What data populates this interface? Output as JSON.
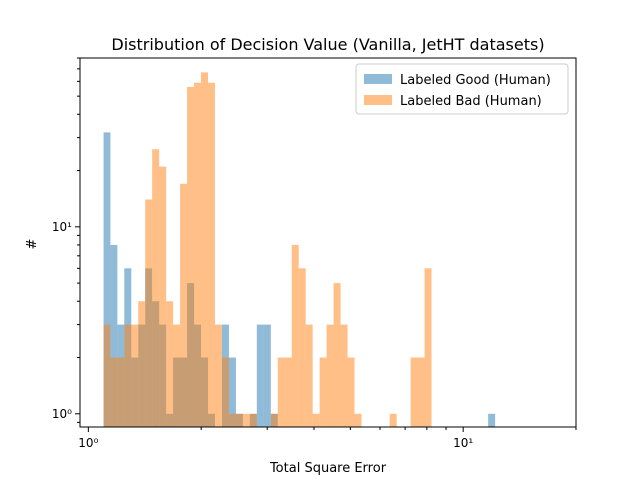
{
  "chart_data": {
    "type": "histogram",
    "title": "Distribution of Decision Value (Vanilla, JetHT datasets)",
    "xlabel": "Total Square Error",
    "ylabel": "#",
    "xscale": "log",
    "yscale": "log",
    "xlim": [
      0.95,
      20
    ],
    "ylim": [
      0.85,
      80
    ],
    "x_ticks": [
      {
        "value": 1,
        "label": "10⁰"
      },
      {
        "value": 10,
        "label": "10¹"
      }
    ],
    "y_ticks": [
      {
        "value": 1,
        "label": "10⁰"
      },
      {
        "value": 10,
        "label": "10¹"
      }
    ],
    "legend": {
      "position": "top-right"
    },
    "series": [
      {
        "name": "Labeled Good (Human)",
        "color": "#1f77b4",
        "opacity": 0.5,
        "bins": [
          {
            "x0": 1.098,
            "x1": 1.145,
            "count": 32
          },
          {
            "x0": 1.145,
            "x1": 1.195,
            "count": 8
          },
          {
            "x0": 1.195,
            "x1": 1.247,
            "count": 3
          },
          {
            "x0": 1.247,
            "x1": 1.302,
            "count": 6
          },
          {
            "x0": 1.302,
            "x1": 1.359,
            "count": 2
          },
          {
            "x0": 1.359,
            "x1": 1.418,
            "count": 3
          },
          {
            "x0": 1.418,
            "x1": 1.48,
            "count": 6
          },
          {
            "x0": 1.48,
            "x1": 1.545,
            "count": 4
          },
          {
            "x0": 1.545,
            "x1": 1.613,
            "count": 3
          },
          {
            "x0": 1.613,
            "x1": 1.683,
            "count": 1
          },
          {
            "x0": 1.683,
            "x1": 1.757,
            "count": 2
          },
          {
            "x0": 1.757,
            "x1": 1.834,
            "count": 2
          },
          {
            "x0": 1.834,
            "x1": 1.915,
            "count": 5
          },
          {
            "x0": 1.915,
            "x1": 1.998,
            "count": 3
          },
          {
            "x0": 1.998,
            "x1": 2.086,
            "count": 2
          },
          {
            "x0": 2.086,
            "x1": 2.177,
            "count": 1
          },
          {
            "x0": 2.272,
            "x1": 2.372,
            "count": 3
          },
          {
            "x0": 2.372,
            "x1": 2.476,
            "count": 2
          },
          {
            "x0": 2.476,
            "x1": 2.584,
            "count": 1
          },
          {
            "x0": 2.697,
            "x1": 2.815,
            "count": 1
          },
          {
            "x0": 2.815,
            "x1": 2.939,
            "count": 3
          },
          {
            "x0": 2.939,
            "x1": 3.068,
            "count": 3
          },
          {
            "x0": 3.068,
            "x1": 3.202,
            "count": 1
          },
          {
            "x0": 11.658,
            "x1": 12.168,
            "count": 1
          }
        ]
      },
      {
        "name": "Labeled Bad (Human)",
        "color": "#ff7f0e",
        "opacity": 0.5,
        "bins": [
          {
            "x0": 1.098,
            "x1": 1.145,
            "count": 3
          },
          {
            "x0": 1.145,
            "x1": 1.195,
            "count": 2
          },
          {
            "x0": 1.195,
            "x1": 1.247,
            "count": 2
          },
          {
            "x0": 1.247,
            "x1": 1.302,
            "count": 3
          },
          {
            "x0": 1.302,
            "x1": 1.359,
            "count": 3
          },
          {
            "x0": 1.359,
            "x1": 1.418,
            "count": 4
          },
          {
            "x0": 1.418,
            "x1": 1.48,
            "count": 14
          },
          {
            "x0": 1.48,
            "x1": 1.545,
            "count": 26
          },
          {
            "x0": 1.545,
            "x1": 1.613,
            "count": 21
          },
          {
            "x0": 1.613,
            "x1": 1.683,
            "count": 4
          },
          {
            "x0": 1.683,
            "x1": 1.757,
            "count": 3
          },
          {
            "x0": 1.757,
            "x1": 1.834,
            "count": 17
          },
          {
            "x0": 1.834,
            "x1": 1.915,
            "count": 56
          },
          {
            "x0": 1.915,
            "x1": 1.998,
            "count": 59
          },
          {
            "x0": 1.998,
            "x1": 2.086,
            "count": 67
          },
          {
            "x0": 2.086,
            "x1": 2.177,
            "count": 59
          },
          {
            "x0": 2.177,
            "x1": 2.272,
            "count": 3
          },
          {
            "x0": 2.272,
            "x1": 2.372,
            "count": 2
          },
          {
            "x0": 2.372,
            "x1": 2.476,
            "count": 1
          },
          {
            "x0": 2.476,
            "x1": 2.584,
            "count": 1
          },
          {
            "x0": 2.584,
            "x1": 2.697,
            "count": 1
          },
          {
            "x0": 2.697,
            "x1": 2.815,
            "count": 1
          },
          {
            "x0": 3.068,
            "x1": 3.202,
            "count": 1
          },
          {
            "x0": 3.202,
            "x1": 3.342,
            "count": 2
          },
          {
            "x0": 3.342,
            "x1": 3.489,
            "count": 2
          },
          {
            "x0": 3.489,
            "x1": 3.641,
            "count": 8
          },
          {
            "x0": 3.641,
            "x1": 3.801,
            "count": 6
          },
          {
            "x0": 3.801,
            "x1": 3.967,
            "count": 3
          },
          {
            "x0": 3.967,
            "x1": 4.141,
            "count": 1
          },
          {
            "x0": 4.141,
            "x1": 4.322,
            "count": 2
          },
          {
            "x0": 4.322,
            "x1": 4.511,
            "count": 3
          },
          {
            "x0": 4.511,
            "x1": 4.709,
            "count": 5
          },
          {
            "x0": 4.709,
            "x1": 4.915,
            "count": 3
          },
          {
            "x0": 4.915,
            "x1": 5.13,
            "count": 2
          },
          {
            "x0": 5.13,
            "x1": 5.354,
            "count": 1
          },
          {
            "x0": 6.367,
            "x1": 6.646,
            "count": 1
          },
          {
            "x0": 7.24,
            "x1": 7.557,
            "count": 2
          },
          {
            "x0": 7.557,
            "x1": 7.888,
            "count": 2
          },
          {
            "x0": 7.888,
            "x1": 8.233,
            "count": 6
          }
        ]
      }
    ]
  }
}
